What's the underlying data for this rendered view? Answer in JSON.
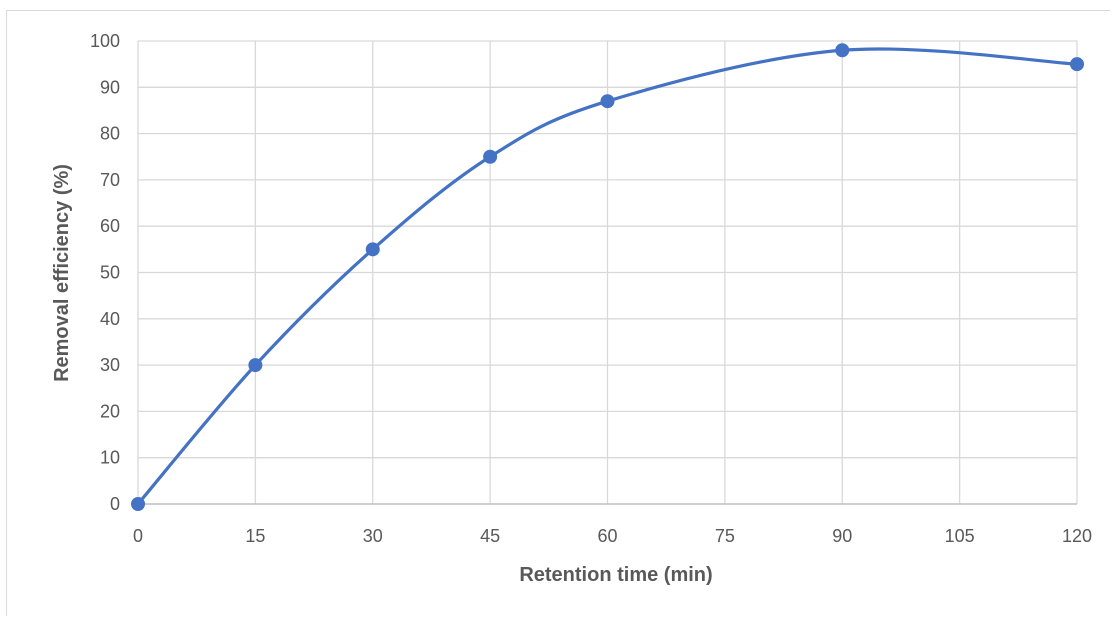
{
  "chart_data": {
    "type": "line",
    "title": "",
    "xlabel": "Retention time (min)",
    "ylabel": "Removal efficiency (%)",
    "x_ticks": [
      "0",
      "15",
      "30",
      "45",
      "60",
      "75",
      "90",
      "105",
      "120"
    ],
    "y_ticks": [
      "0",
      "10",
      "20",
      "30",
      "40",
      "50",
      "60",
      "70",
      "80",
      "90",
      "100"
    ],
    "xlim": [
      0,
      120
    ],
    "ylim": [
      0,
      100
    ],
    "grid": true,
    "smoothed": true,
    "legend": "none",
    "series": [
      {
        "color": "#4472c4",
        "x": [
          0,
          15,
          30,
          45,
          60,
          90,
          120
        ],
        "y": [
          0,
          30,
          55,
          75,
          87,
          98,
          95
        ]
      }
    ]
  }
}
